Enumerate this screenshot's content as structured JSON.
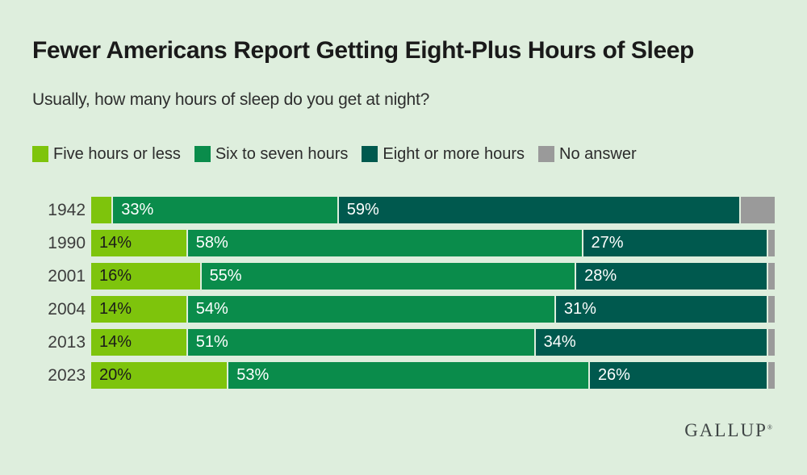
{
  "page": {
    "background": "#deeedd"
  },
  "header": {
    "title": "Fewer Americans Report Getting Eight-Plus Hours of Sleep",
    "subtitle": "Usually, how many hours of sleep do you get at night?"
  },
  "chart_data": {
    "type": "bar",
    "stacked": true,
    "orientation": "horizontal",
    "unit": "%",
    "xlim": [
      0,
      100
    ],
    "grid": false,
    "legend_position": "top",
    "label_min_value": 10,
    "categories": [
      "1942",
      "1990",
      "2001",
      "2004",
      "2013",
      "2023"
    ],
    "series": [
      {
        "name": "Five hours or less",
        "color": "#7ec40c",
        "label_color": "#1a1a1a",
        "show_value_labels": true,
        "values": [
          3,
          14,
          16,
          14,
          14,
          20
        ]
      },
      {
        "name": "Six to seven hours",
        "color": "#0a8c4b",
        "label_color": "#ffffff",
        "show_value_labels": true,
        "values": [
          33,
          58,
          55,
          54,
          51,
          53
        ]
      },
      {
        "name": "Eight or more hours",
        "color": "#00594e",
        "label_color": "#ffffff",
        "show_value_labels": true,
        "values": [
          59,
          27,
          28,
          31,
          34,
          26
        ]
      },
      {
        "name": "No answer",
        "color": "#9a9a9a",
        "label_color": "#ffffff",
        "show_value_labels": false,
        "values": [
          5,
          1,
          1,
          1,
          1,
          1
        ]
      }
    ]
  },
  "logo": {
    "text": "GALLUP",
    "mark": "®"
  }
}
